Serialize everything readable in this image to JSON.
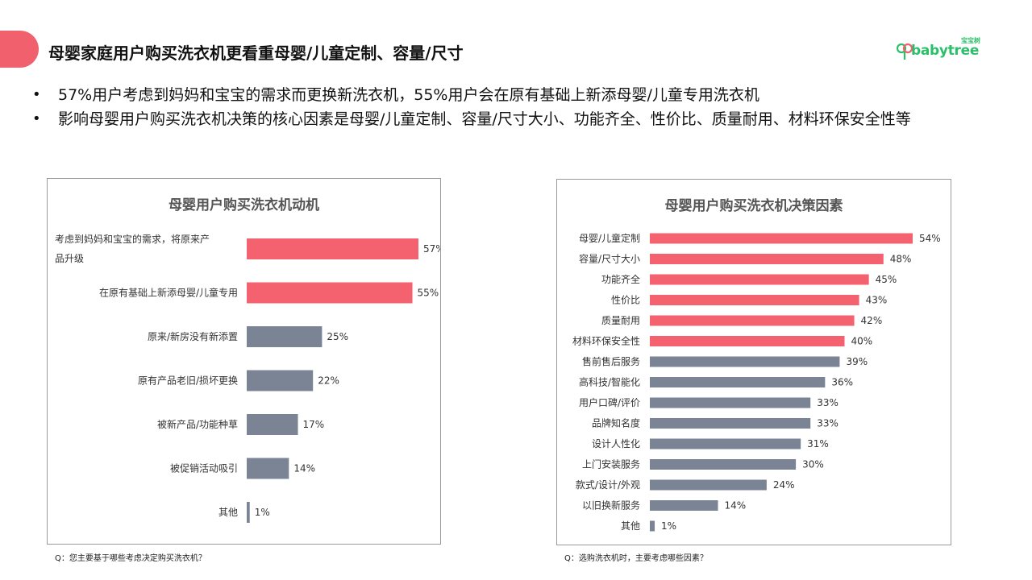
{
  "header": {
    "title": "母婴家庭用户购买洗衣机更看重母婴/儿童定制、容量/尺寸",
    "logo_text": "babytree",
    "logo_cn": "宝宝树",
    "accent_color": "#f0606d"
  },
  "bullets": [
    "57%用户考虑到妈妈和宝宝的需求而更换新洗衣机，55%用户会在原有基础上新添母婴/儿童专用洗衣机",
    "影响母婴用户购买洗衣机决策的核心因素是母婴/儿童定制、容量/尺寸大小、功能齐全、性价比、质量耐用、材料环保安全性等"
  ],
  "colors": {
    "highlight": "#f5626f",
    "normal": "#7b8494"
  },
  "left_panel": {
    "title": "母婴用户购买洗衣机动机",
    "note": "Q：您主要基于哪些考虑决定购买洗衣机？"
  },
  "right_panel": {
    "title": "母婴用户购买洗衣机决策因素",
    "note": "Q：选购洗衣机时，主要考虑哪些因素？"
  },
  "chart_data": [
    {
      "type": "bar",
      "orientation": "horizontal",
      "title": "母婴用户购买洗衣机动机",
      "categories": [
        "考虑到妈妈和宝宝的需求，将原来产品升级",
        "在原有基础上新添母婴/儿童专用",
        "原来/新房没有新添置",
        "原有产品老旧/损坏更换",
        "被新产品/功能种草",
        "被促销活动吸引",
        "其他"
      ],
      "values": [
        57,
        55,
        25,
        22,
        17,
        14,
        1
      ],
      "value_labels": [
        "57%",
        "55%",
        "25%",
        "22%",
        "17%",
        "14%",
        "1%"
      ],
      "highlight": [
        true,
        true,
        false,
        false,
        false,
        false,
        false
      ],
      "xlim": [
        0,
        57
      ]
    },
    {
      "type": "bar",
      "orientation": "horizontal",
      "title": "母婴用户购买洗衣机决策因素",
      "categories": [
        "母婴/儿童定制",
        "容量/尺寸大小",
        "功能齐全",
        "性价比",
        "质量耐用",
        "材料环保安全性",
        "售前售后服务",
        "高科技/智能化",
        "用户口碑/评价",
        "品牌知名度",
        "设计人性化",
        "上门安装服务",
        "款式/设计/外观",
        "以旧换新服务",
        "其他"
      ],
      "values": [
        54,
        48,
        45,
        43,
        42,
        40,
        39,
        36,
        33,
        33,
        31,
        30,
        24,
        14,
        1
      ],
      "value_labels": [
        "54%",
        "48%",
        "45%",
        "43%",
        "42%",
        "40%",
        "39%",
        "36%",
        "33%",
        "33%",
        "31%",
        "30%",
        "24%",
        "14%",
        "1%"
      ],
      "highlight": [
        true,
        true,
        true,
        true,
        true,
        true,
        false,
        false,
        false,
        false,
        false,
        false,
        false,
        false,
        false
      ],
      "xlim": [
        0,
        54
      ]
    }
  ]
}
